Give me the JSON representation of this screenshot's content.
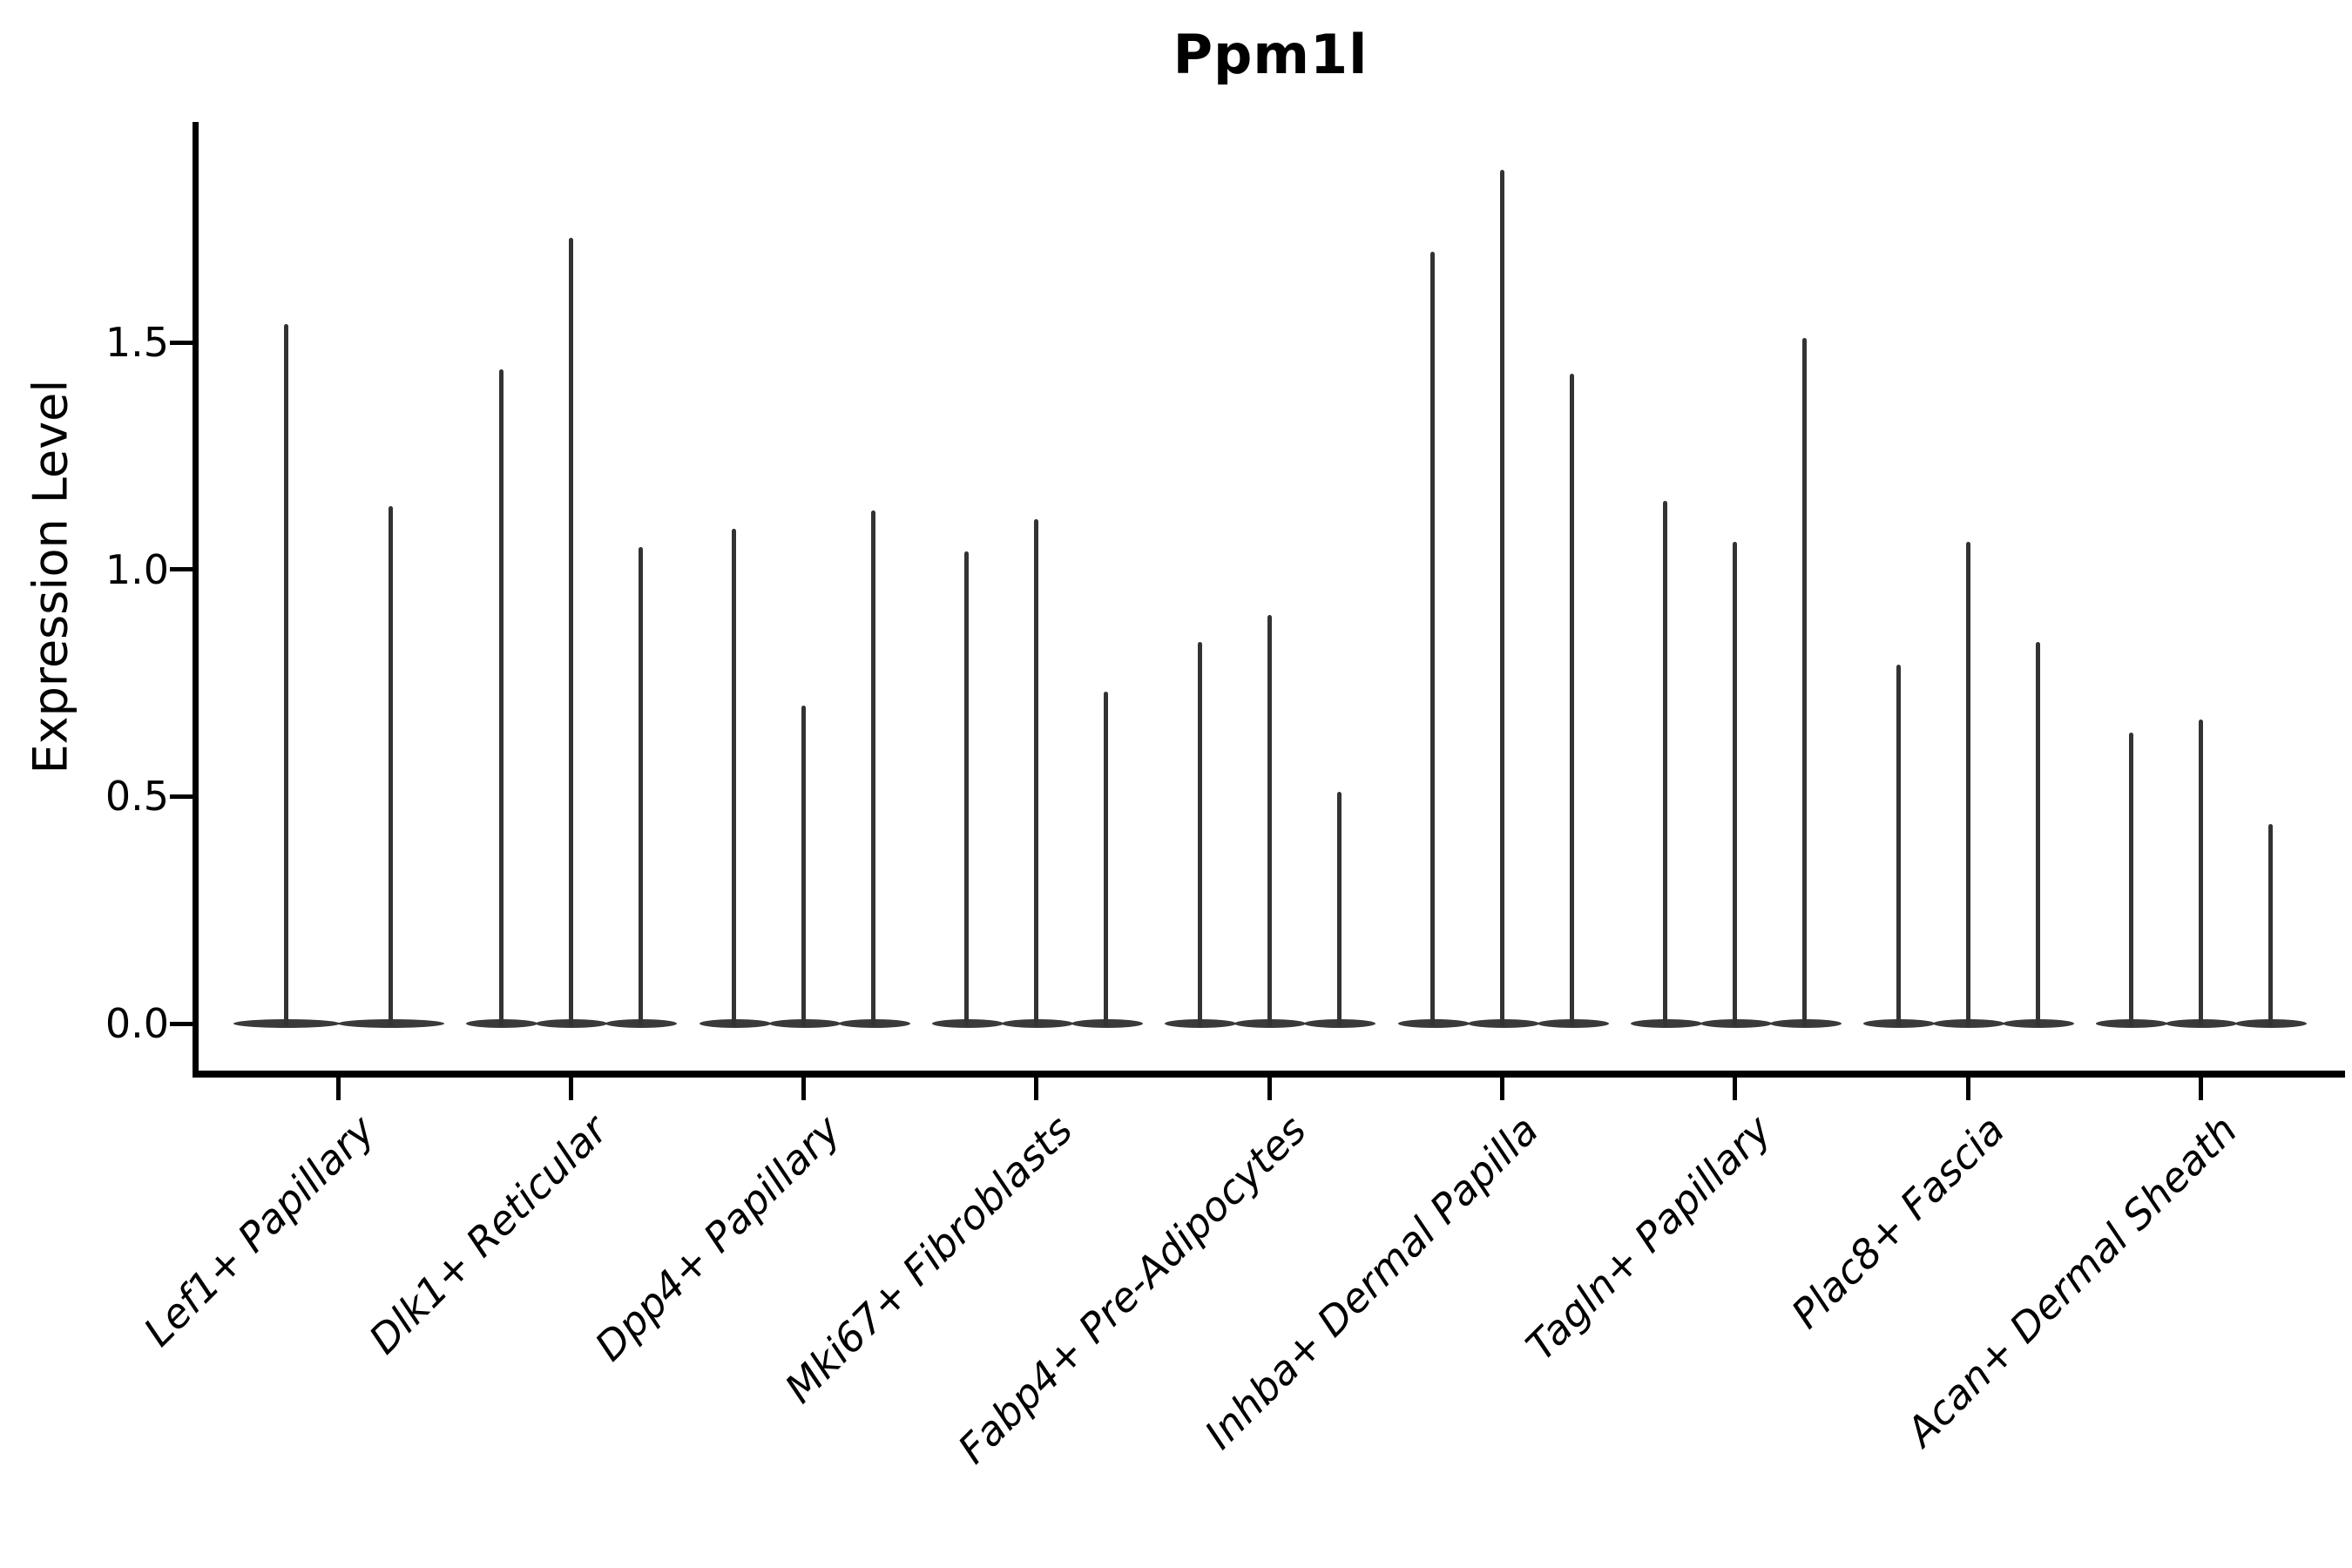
{
  "title": "Ppm1l",
  "y_axis": {
    "label": "Expression Level",
    "tick_labels": [
      "0.0",
      "0.5",
      "1.0",
      "1.5"
    ]
  },
  "x_axis": {
    "tick_labels": [
      "Lef1+ Papillary",
      "Dlk1+ Reticular",
      "Dpp4+ Papillary",
      "Mki67+ Fibroblasts",
      "Fabp4+ Pre-Adipocytes",
      "Inhba+ Dermal Papilla",
      "Tagln+ Papillary",
      "Plac8+ Fascia",
      "Acan+ Dermal Sheath"
    ]
  },
  "chart_data": {
    "type": "violin",
    "title": "Ppm1l",
    "xlabel": "",
    "ylabel": "Expression Level",
    "ylim": [
      0,
      2.0
    ],
    "yticks": [
      {
        "label": "0.0",
        "value": 0.0
      },
      {
        "label": "0.5",
        "value": 0.5
      },
      {
        "label": "1.0",
        "value": 1.0
      },
      {
        "label": "1.5",
        "value": 1.5
      }
    ],
    "grid": false,
    "legend": "none",
    "baseline_value": 0.0,
    "categories": [
      "Lef1+ Papillary",
      "Dlk1+ Reticular",
      "Dpp4+ Papillary",
      "Mki67+ Fibroblasts",
      "Fabp4+ Pre-Adipocytes",
      "Inhba+ Dermal Papilla",
      "Tagln+ Papillary",
      "Plac8+ Fascia",
      "Acan+ Dermal Sheath"
    ],
    "series": [
      {
        "category": "Lef1+ Papillary",
        "violin_max_values": [
          1.54,
          1.14
        ]
      },
      {
        "category": "Dlk1+ Reticular",
        "violin_max_values": [
          1.44,
          1.73,
          1.05
        ]
      },
      {
        "category": "Dpp4+ Papillary",
        "violin_max_values": [
          1.09,
          0.7,
          1.13
        ]
      },
      {
        "category": "Mki67+ Fibroblasts",
        "violin_max_values": [
          1.04,
          1.11,
          0.73
        ]
      },
      {
        "category": "Fabp4+ Pre-Adipocytes",
        "violin_max_values": [
          0.84,
          0.9,
          0.51
        ]
      },
      {
        "category": "Inhba+ Dermal Papilla",
        "violin_max_values": [
          1.7,
          1.88,
          1.43
        ]
      },
      {
        "category": "Tagln+ Papillary",
        "violin_max_values": [
          1.15,
          1.06,
          1.51
        ]
      },
      {
        "category": "Plac8+ Fascia",
        "violin_max_values": [
          0.79,
          1.06,
          0.84
        ]
      },
      {
        "category": "Acan+ Dermal Sheath",
        "violin_max_values": [
          0.64,
          0.67,
          0.44
        ]
      }
    ],
    "colors": {
      "violin": "#333333",
      "axis": "#000000",
      "text": "#000000",
      "background": "#ffffff"
    }
  }
}
